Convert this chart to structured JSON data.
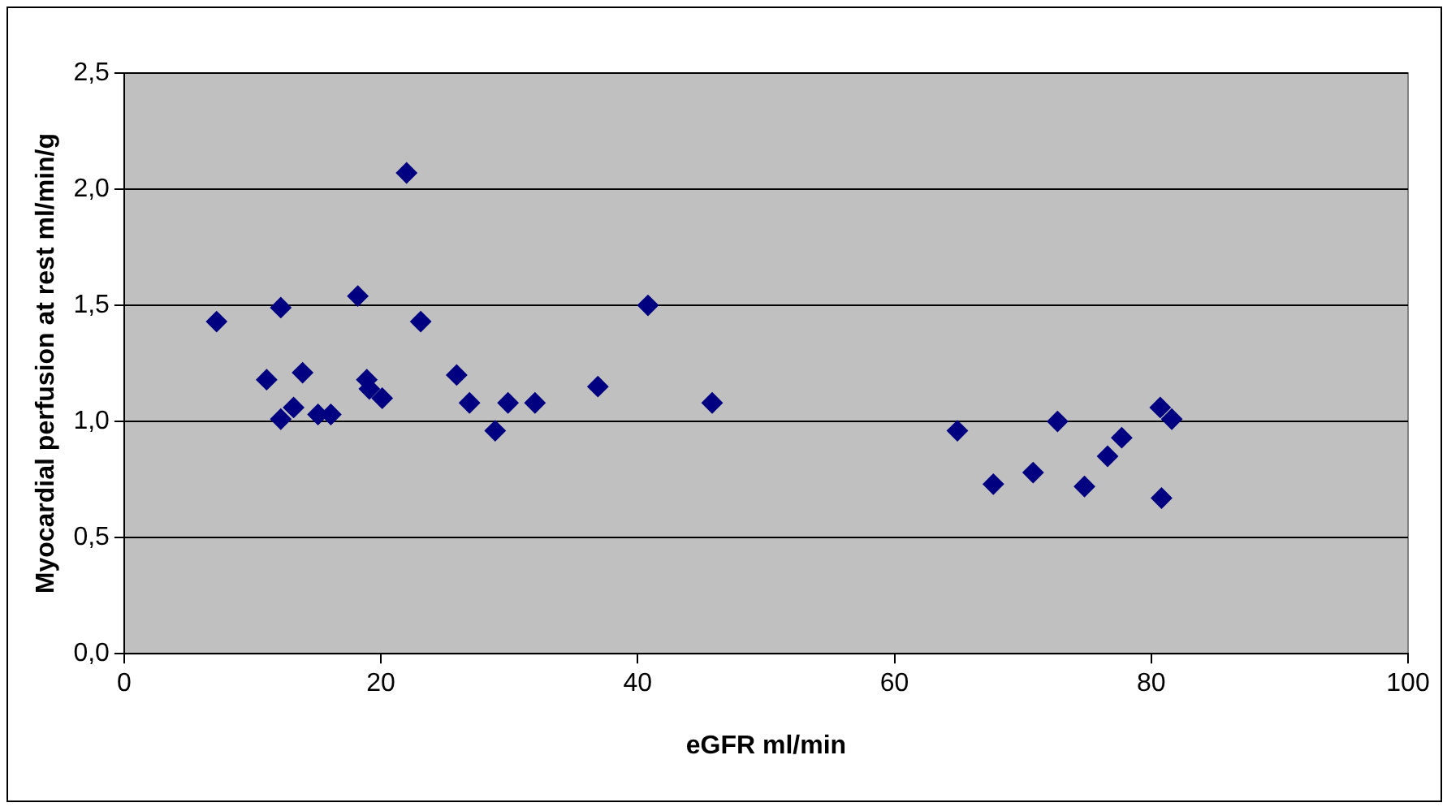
{
  "chart_data": {
    "type": "scatter",
    "xlabel": "eGFR ml/min",
    "ylabel": "Myocardial perfusion at rest ml/min/g",
    "x": [
      7.2,
      11.1,
      12.2,
      12.2,
      13.2,
      13.9,
      15.1,
      16.1,
      18.2,
      18.9,
      19.1,
      20.1,
      22.0,
      23.1,
      25.9,
      26.9,
      28.9,
      29.9,
      32.0,
      36.9,
      40.8,
      45.8,
      64.9,
      67.7,
      70.8,
      72.7,
      74.8,
      76.6,
      77.7,
      80.7,
      81.6,
      80.8
    ],
    "series": [
      {
        "color": "#000080",
        "values": [
          1.43,
          1.18,
          1.49,
          1.01,
          1.06,
          1.21,
          1.03,
          1.03,
          1.54,
          1.18,
          1.14,
          1.1,
          2.07,
          1.43,
          1.2,
          1.08,
          0.96,
          1.08,
          1.08,
          1.15,
          1.5,
          1.08,
          0.96,
          0.73,
          0.78,
          1.0,
          0.72,
          0.85,
          0.93,
          1.06,
          1.01,
          0.67
        ]
      }
    ],
    "xlim": [
      0,
      100
    ],
    "xticks": [
      0,
      20,
      40,
      60,
      80,
      100
    ],
    "ylim": [
      0,
      2.5
    ],
    "yticks": [
      {
        "value": 0,
        "label": "0,0"
      },
      {
        "value": 0.5,
        "label": "0,5"
      },
      {
        "value": 1,
        "label": "1,0"
      },
      {
        "value": 1.5,
        "label": "1,5"
      },
      {
        "value": 2,
        "label": "2,0"
      },
      {
        "value": 2.5,
        "label": "2,5"
      }
    ],
    "grid": "y",
    "legend": false,
    "marker": "diamond"
  }
}
